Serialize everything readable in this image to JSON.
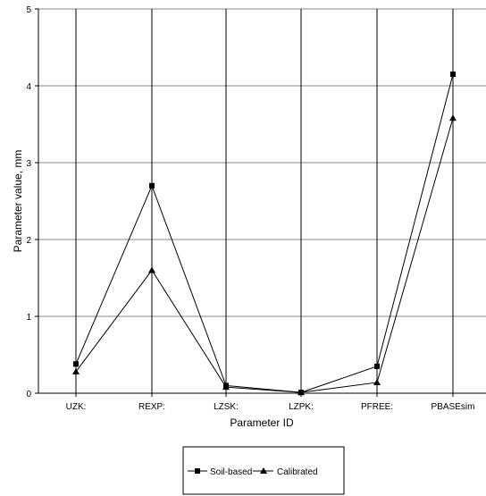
{
  "chart_data": {
    "type": "line",
    "xlabel": "Parameter ID",
    "ylabel": "Parameter value, mm",
    "categories": [
      "UZK",
      "REXP",
      "LZSK",
      "LZPK",
      "PFREE",
      "PBASEsim"
    ],
    "category_labels": [
      "UZK:",
      "REXP:",
      "LZSK:",
      "LZPK:",
      "PFREE:",
      "PBASEsim"
    ],
    "ylim": [
      0,
      5
    ],
    "yticks": [
      "0",
      "1",
      "2",
      "3",
      "4",
      "5"
    ],
    "grid": true,
    "legend_position": "bottom-center",
    "series": [
      {
        "name": "Soil-based",
        "marker": "square",
        "values": [
          0.38,
          2.7,
          0.1,
          0.01,
          0.35,
          4.15
        ]
      },
      {
        "name": "Calibrated",
        "marker": "triangle",
        "values": [
          0.28,
          1.6,
          0.08,
          0.01,
          0.14,
          3.58
        ]
      }
    ]
  }
}
